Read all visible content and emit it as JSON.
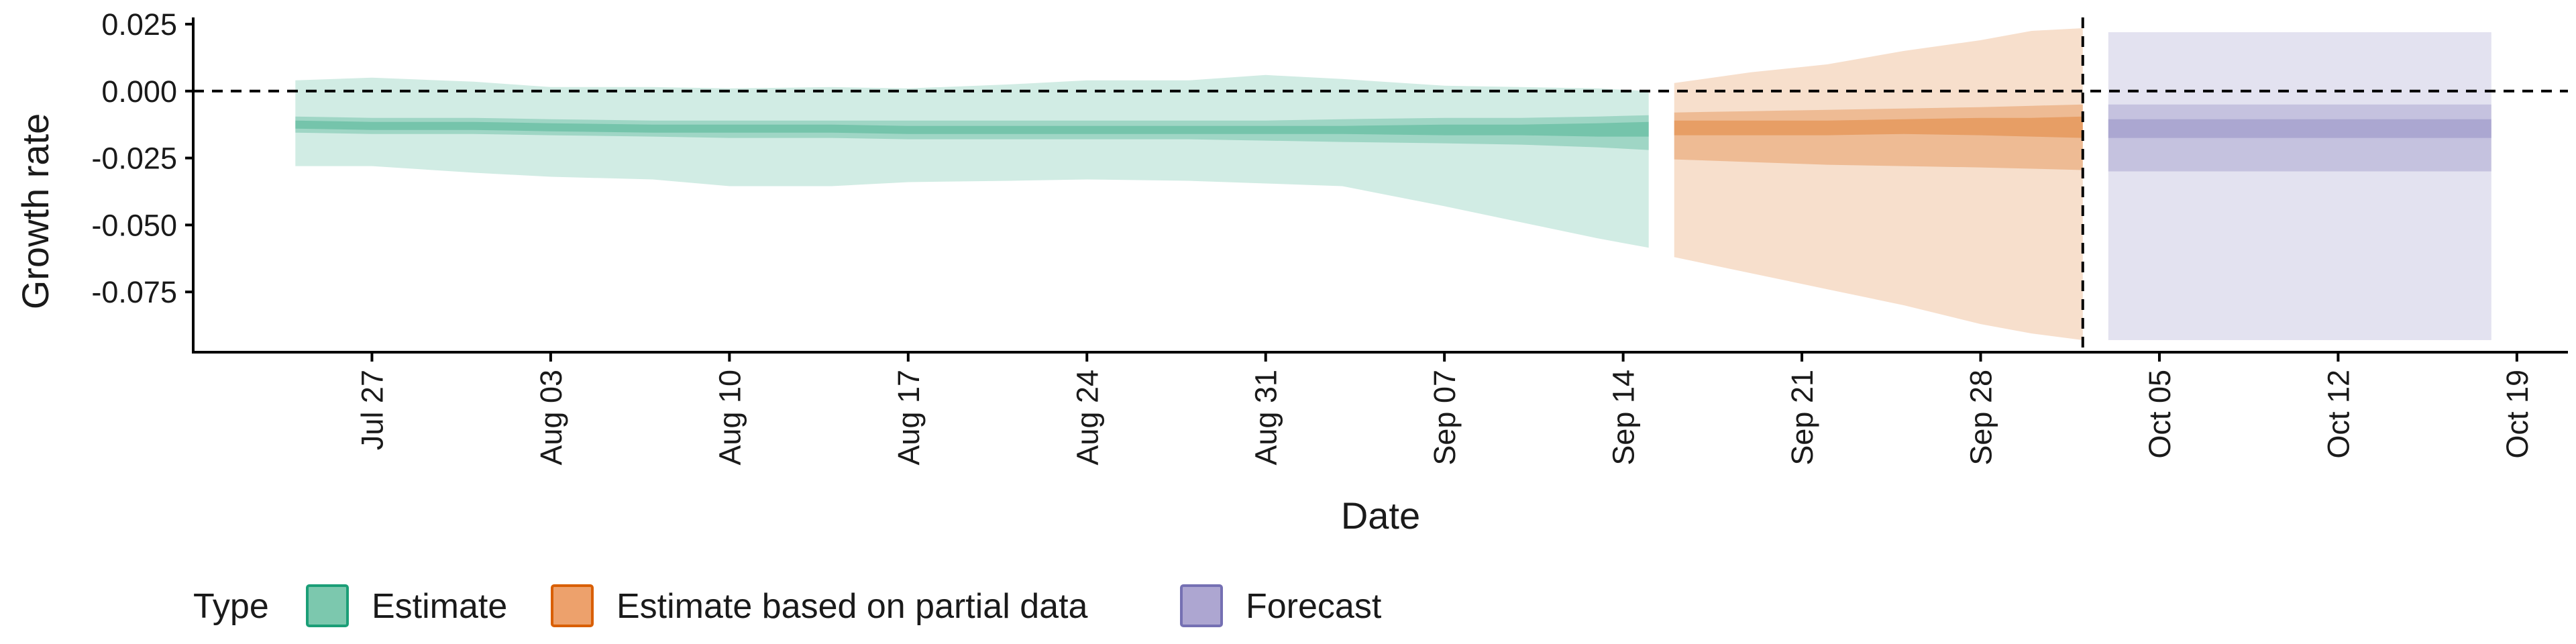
{
  "chart_data": {
    "type": "area",
    "xlabel": "Date",
    "ylabel": "Growth rate",
    "x_range": [
      "2020-07-20",
      "2020-10-21"
    ],
    "ylim": [
      -0.0975,
      0.0275
    ],
    "x_ticks": [
      {
        "date": "2020-07-27",
        "label": "Jul 27"
      },
      {
        "date": "2020-08-03",
        "label": "Aug 03"
      },
      {
        "date": "2020-08-10",
        "label": "Aug 10"
      },
      {
        "date": "2020-08-17",
        "label": "Aug 17"
      },
      {
        "date": "2020-08-24",
        "label": "Aug 24"
      },
      {
        "date": "2020-08-31",
        "label": "Aug 31"
      },
      {
        "date": "2020-09-07",
        "label": "Sep 07"
      },
      {
        "date": "2020-09-14",
        "label": "Sep 14"
      },
      {
        "date": "2020-09-21",
        "label": "Sep 21"
      },
      {
        "date": "2020-09-28",
        "label": "Sep 28"
      },
      {
        "date": "2020-10-05",
        "label": "Oct 05"
      },
      {
        "date": "2020-10-12",
        "label": "Oct 12"
      },
      {
        "date": "2020-10-19",
        "label": "Oct 19"
      }
    ],
    "y_ticks": [
      {
        "value": 0.025,
        "label": "0.025"
      },
      {
        "value": 0.0,
        "label": "0.000"
      },
      {
        "value": -0.025,
        "label": "-0.025"
      },
      {
        "value": -0.05,
        "label": "-0.050"
      },
      {
        "value": -0.075,
        "label": "-0.075"
      }
    ],
    "reference_lines": {
      "horizontal_y": 0.0,
      "vertical_date": "2020-10-02"
    },
    "grid": false,
    "legend": {
      "title": "Type",
      "placement": "bottom",
      "entries": [
        {
          "label": "Estimate",
          "fill": "#7CC8AE",
          "stroke": "#1B9E77"
        },
        {
          "label": "Estimate based on partial data",
          "fill": "#EDA16C",
          "stroke": "#D95F02"
        },
        {
          "label": "Forecast",
          "fill": "#ADA6D1",
          "stroke": "#7570B3"
        }
      ]
    },
    "series": [
      {
        "name": "Estimate",
        "color": "#1B9E77",
        "points": [
          {
            "date": "2020-07-24",
            "median": -0.0125,
            "lo20": -0.014,
            "hi20": -0.011,
            "lo50": -0.0155,
            "hi50": -0.0095,
            "lo90": -0.028,
            "hi90": 0.004
          },
          {
            "date": "2020-07-27",
            "median": -0.013,
            "lo20": -0.0145,
            "hi20": -0.0115,
            "lo50": -0.016,
            "hi50": -0.01,
            "lo90": -0.028,
            "hi90": 0.005
          },
          {
            "date": "2020-07-31",
            "median": -0.013,
            "lo20": -0.0145,
            "hi20": -0.0115,
            "lo50": -0.016,
            "hi50": -0.01,
            "lo90": -0.0305,
            "hi90": 0.0035
          },
          {
            "date": "2020-08-03",
            "median": -0.0135,
            "lo20": -0.015,
            "hi20": -0.012,
            "lo50": -0.0165,
            "hi50": -0.0105,
            "lo90": -0.032,
            "hi90": 0.0015
          },
          {
            "date": "2020-08-07",
            "median": -0.014,
            "lo20": -0.0155,
            "hi20": -0.0125,
            "lo50": -0.017,
            "hi50": -0.011,
            "lo90": -0.033,
            "hi90": 0.0015
          },
          {
            "date": "2020-08-10",
            "median": -0.014,
            "lo20": -0.0155,
            "hi20": -0.0125,
            "lo50": -0.0175,
            "hi50": -0.011,
            "lo90": -0.0355,
            "hi90": 0.001
          },
          {
            "date": "2020-08-14",
            "median": -0.014,
            "lo20": -0.0155,
            "hi20": -0.0125,
            "lo50": -0.0175,
            "hi50": -0.011,
            "lo90": -0.0355,
            "hi90": 0.0015
          },
          {
            "date": "2020-08-17",
            "median": -0.0145,
            "lo20": -0.016,
            "hi20": -0.013,
            "lo50": -0.018,
            "hi50": -0.011,
            "lo90": -0.034,
            "hi90": 0.001
          },
          {
            "date": "2020-08-21",
            "median": -0.0145,
            "lo20": -0.016,
            "hi20": -0.013,
            "lo50": -0.018,
            "hi50": -0.011,
            "lo90": -0.0335,
            "hi90": 0.0025
          },
          {
            "date": "2020-08-24",
            "median": -0.0145,
            "lo20": -0.016,
            "hi20": -0.013,
            "lo50": -0.018,
            "hi50": -0.011,
            "lo90": -0.033,
            "hi90": 0.004
          },
          {
            "date": "2020-08-28",
            "median": -0.0145,
            "lo20": -0.016,
            "hi20": -0.013,
            "lo50": -0.018,
            "hi50": -0.011,
            "lo90": -0.0335,
            "hi90": 0.004
          },
          {
            "date": "2020-08-31",
            "median": -0.0145,
            "lo20": -0.016,
            "hi20": -0.013,
            "lo50": -0.0185,
            "hi50": -0.011,
            "lo90": -0.0345,
            "hi90": 0.006
          },
          {
            "date": "2020-09-03",
            "median": -0.0145,
            "lo20": -0.016,
            "hi20": -0.013,
            "lo50": -0.019,
            "hi50": -0.0105,
            "lo90": -0.0355,
            "hi90": 0.0045
          },
          {
            "date": "2020-09-07",
            "median": -0.0145,
            "lo20": -0.0165,
            "hi20": -0.0125,
            "lo50": -0.0195,
            "hi50": -0.01,
            "lo90": -0.043,
            "hi90": 0.002
          },
          {
            "date": "2020-09-10",
            "median": -0.0145,
            "lo20": -0.0165,
            "hi20": -0.0125,
            "lo50": -0.02,
            "hi50": -0.01,
            "lo90": -0.049,
            "hi90": 0.0015
          },
          {
            "date": "2020-09-13",
            "median": -0.0145,
            "lo20": -0.017,
            "hi20": -0.012,
            "lo50": -0.021,
            "hi50": -0.0095,
            "lo90": -0.055,
            "hi90": 0.001
          },
          {
            "date": "2020-09-15",
            "median": -0.014,
            "lo20": -0.017,
            "hi20": -0.0115,
            "lo50": -0.022,
            "hi50": -0.009,
            "lo90": -0.0585,
            "hi90": 0.0
          }
        ]
      },
      {
        "name": "Estimate based on partial data",
        "color": "#D95F02",
        "points": [
          {
            "date": "2020-09-16",
            "median": -0.014,
            "lo20": -0.0165,
            "hi20": -0.011,
            "lo50": -0.0255,
            "hi50": -0.008,
            "lo90": -0.062,
            "hi90": 0.003
          },
          {
            "date": "2020-09-19",
            "median": -0.014,
            "lo20": -0.0165,
            "hi20": -0.011,
            "lo50": -0.0265,
            "hi50": -0.0075,
            "lo90": -0.068,
            "hi90": 0.007
          },
          {
            "date": "2020-09-22",
            "median": -0.014,
            "lo20": -0.0165,
            "hi20": -0.011,
            "lo50": -0.0275,
            "hi50": -0.007,
            "lo90": -0.074,
            "hi90": 0.01
          },
          {
            "date": "2020-09-25",
            "median": -0.0135,
            "lo20": -0.016,
            "hi20": -0.0105,
            "lo50": -0.028,
            "hi50": -0.0065,
            "lo90": -0.08,
            "hi90": 0.015
          },
          {
            "date": "2020-09-28",
            "median": -0.0135,
            "lo20": -0.0165,
            "hi20": -0.01,
            "lo50": -0.0285,
            "hi50": -0.006,
            "lo90": -0.087,
            "hi90": 0.019
          },
          {
            "date": "2020-09-30",
            "median": -0.0135,
            "lo20": -0.017,
            "hi20": -0.01,
            "lo50": -0.029,
            "hi50": -0.0055,
            "lo90": -0.0905,
            "hi90": 0.0225
          },
          {
            "date": "2020-10-02",
            "median": -0.0135,
            "lo20": -0.0175,
            "hi20": -0.0095,
            "lo50": -0.0295,
            "hi50": -0.005,
            "lo90": -0.093,
            "hi90": 0.0235
          }
        ]
      },
      {
        "name": "Forecast",
        "color": "#7570B3",
        "points": [
          {
            "date": "2020-10-03",
            "median": -0.014,
            "lo20": -0.0175,
            "hi20": -0.0105,
            "lo50": -0.03,
            "hi50": -0.005,
            "lo90": -0.093,
            "hi90": 0.022
          },
          {
            "date": "2020-10-18",
            "median": -0.014,
            "lo20": -0.0175,
            "hi20": -0.0105,
            "lo50": -0.03,
            "hi50": -0.005,
            "lo90": -0.093,
            "hi90": 0.022
          }
        ]
      }
    ]
  }
}
